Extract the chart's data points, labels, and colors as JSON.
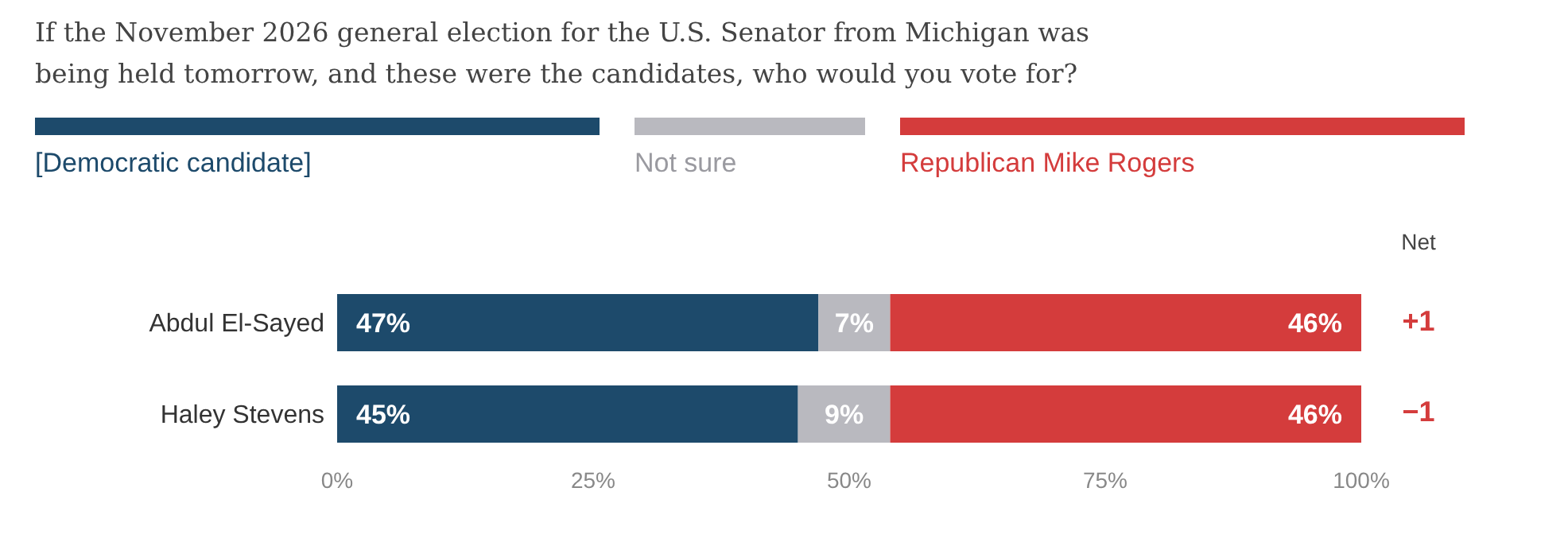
{
  "chart_data": {
    "type": "bar",
    "orientation": "horizontal",
    "stacked": true,
    "title": "If the November 2026 general election for the U.S. Senator from Michigan was being held tomorrow, and these were the candidates, who would you vote for?",
    "categories": [
      "Abdul El-Sayed",
      "Haley Stevens"
    ],
    "series": [
      {
        "name": "[Democratic candidate]",
        "color": "#1d4a6b",
        "values": [
          47,
          45
        ],
        "value_labels": [
          "47%",
          "45%"
        ]
      },
      {
        "name": "Not sure",
        "color": "#b9b9bf",
        "values": [
          7,
          9
        ],
        "value_labels": [
          "7%",
          "9%"
        ]
      },
      {
        "name": "Republican Mike Rogers",
        "color": "#d43c3c",
        "values": [
          46,
          46
        ],
        "value_labels": [
          "46%",
          "46%"
        ]
      }
    ],
    "xlim": [
      0,
      100
    ],
    "xticks": [
      {
        "value": 0,
        "label": "0%"
      },
      {
        "value": 25,
        "label": "25%"
      },
      {
        "value": 50,
        "label": "50%"
      },
      {
        "value": 75,
        "label": "75%"
      },
      {
        "value": 100,
        "label": "100%"
      }
    ],
    "grid": false,
    "legend": "top",
    "tick_labels": "xy",
    "annotations": [
      "Net",
      "+1",
      "−1"
    ]
  }
}
